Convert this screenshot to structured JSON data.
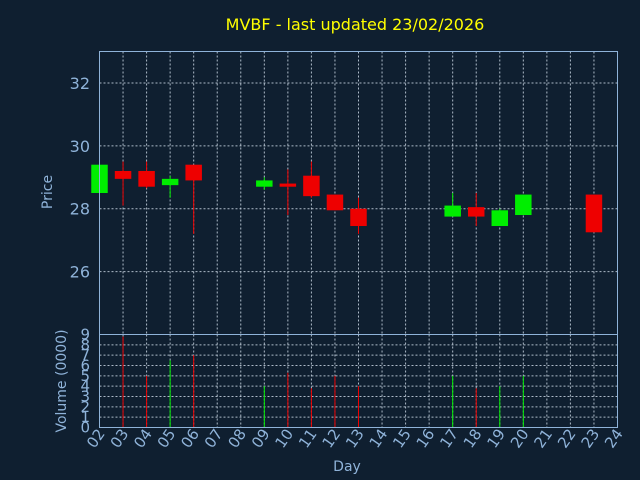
{
  "title": "MVBF - last updated 23/02/2026",
  "colors": {
    "up": "#00ee00",
    "down": "#ee0000",
    "background": "#0f1f30",
    "text": "#8fb3d9",
    "title": "#ffff00"
  },
  "chart_data": [
    {
      "type": "candlestick",
      "ylabel": "Price",
      "ylim": [
        24,
        33
      ],
      "yticks": [
        "26",
        "28",
        "30",
        "32"
      ],
      "grid": true,
      "candles": [
        {
          "day": "02",
          "open": 28.5,
          "high": 29.4,
          "low": 28.5,
          "close": 29.4
        },
        {
          "day": "03",
          "open": 29.2,
          "high": 29.5,
          "low": 28.1,
          "close": 28.95
        },
        {
          "day": "04",
          "open": 29.2,
          "high": 29.5,
          "low": 28.65,
          "close": 28.7
        },
        {
          "day": "05",
          "open": 28.75,
          "high": 29.05,
          "low": 28.35,
          "close": 28.95
        },
        {
          "day": "06",
          "open": 29.4,
          "high": 29.4,
          "low": 27.2,
          "close": 28.9
        },
        {
          "day": "09",
          "open": 28.7,
          "high": 29.0,
          "low": 28.6,
          "close": 28.9
        },
        {
          "day": "10",
          "open": 28.8,
          "high": 29.25,
          "low": 27.8,
          "close": 28.7
        },
        {
          "day": "11",
          "open": 29.05,
          "high": 29.5,
          "low": 28.35,
          "close": 28.4
        },
        {
          "day": "12",
          "open": 28.45,
          "high": 28.45,
          "low": 27.95,
          "close": 27.95
        },
        {
          "day": "13",
          "open": 28.0,
          "high": 28.35,
          "low": 27.2,
          "close": 27.45
        },
        {
          "day": "17",
          "open": 27.75,
          "high": 28.5,
          "low": 27.75,
          "close": 28.1
        },
        {
          "day": "18",
          "open": 28.05,
          "high": 28.5,
          "low": 27.45,
          "close": 27.75
        },
        {
          "day": "19",
          "open": 27.45,
          "high": 28.0,
          "low": 27.45,
          "close": 27.95
        },
        {
          "day": "20",
          "open": 27.8,
          "high": 28.45,
          "low": 27.8,
          "close": 28.45
        },
        {
          "day": "23",
          "open": 28.45,
          "high": 28.45,
          "low": 27.25,
          "close": 27.25
        }
      ]
    },
    {
      "type": "bar",
      "ylabel": "Volume (0000)",
      "xlabel": "Day",
      "ylim": [
        0,
        9
      ],
      "yticks": [
        "0",
        "1",
        "2",
        "3",
        "4",
        "5",
        "6",
        "7",
        "8",
        "9"
      ],
      "categories": [
        "02",
        "03",
        "04",
        "05",
        "06",
        "07",
        "08",
        "09",
        "10",
        "11",
        "12",
        "13",
        "14",
        "15",
        "16",
        "17",
        "18",
        "19",
        "20",
        "21",
        "22",
        "23",
        "24"
      ],
      "volumes": [
        {
          "day": "03",
          "value": 8.8,
          "dir": "down"
        },
        {
          "day": "04",
          "value": 5.0,
          "dir": "down"
        },
        {
          "day": "05",
          "value": 6.5,
          "dir": "up"
        },
        {
          "day": "06",
          "value": 7.0,
          "dir": "down"
        },
        {
          "day": "09",
          "value": 4.0,
          "dir": "up"
        },
        {
          "day": "10",
          "value": 5.3,
          "dir": "down"
        },
        {
          "day": "11",
          "value": 3.8,
          "dir": "down"
        },
        {
          "day": "12",
          "value": 5.0,
          "dir": "down"
        },
        {
          "day": "13",
          "value": 4.0,
          "dir": "down"
        },
        {
          "day": "17",
          "value": 5.0,
          "dir": "up"
        },
        {
          "day": "18",
          "value": 3.8,
          "dir": "down"
        },
        {
          "day": "19",
          "value": 4.0,
          "dir": "up"
        },
        {
          "day": "20",
          "value": 5.0,
          "dir": "up"
        }
      ]
    }
  ]
}
